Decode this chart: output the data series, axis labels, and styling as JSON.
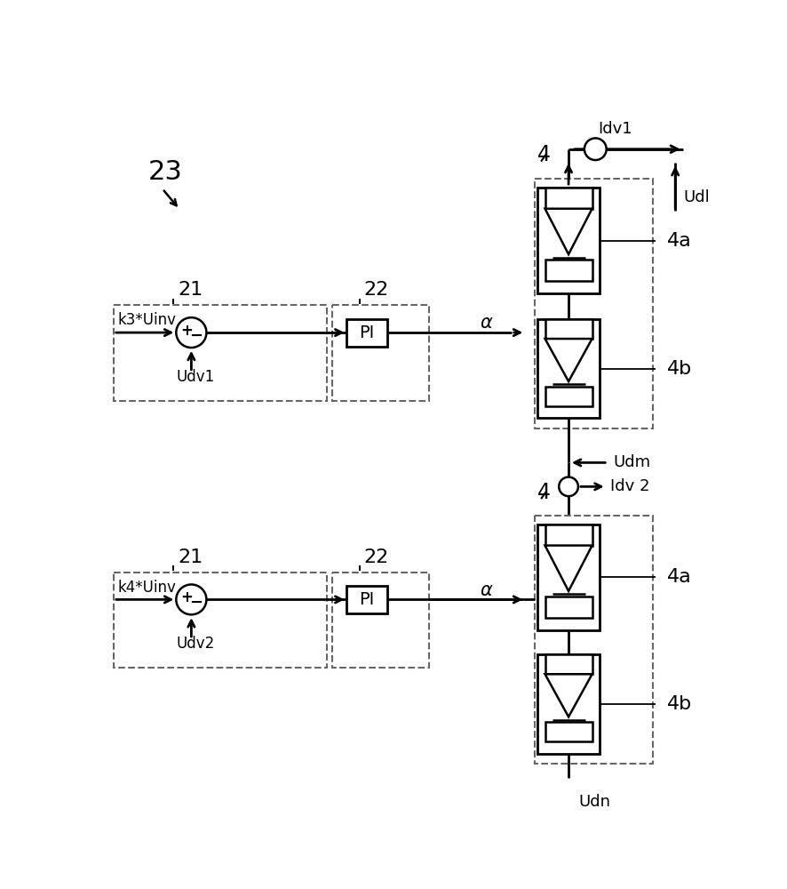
{
  "bg_color": "#ffffff",
  "lc": "#000000",
  "dc": "#666666",
  "label_23": "23",
  "label_21": "21",
  "label_22": "22",
  "label_4": "4",
  "label_4a": "4a",
  "label_4b": "4b",
  "label_Idv1": "Idv1",
  "label_Udl": "Udl",
  "label_Udm": "Udm",
  "label_Idv2": "Idv 2",
  "label_Udn": "Udn",
  "label_alpha": "α",
  "label_k3Uinv": "k3*Uinv",
  "label_k4Uinv": "k4*Uinv",
  "label_Udv1": "Udv1",
  "label_Udv2": "Udv2",
  "label_PI": "PI"
}
